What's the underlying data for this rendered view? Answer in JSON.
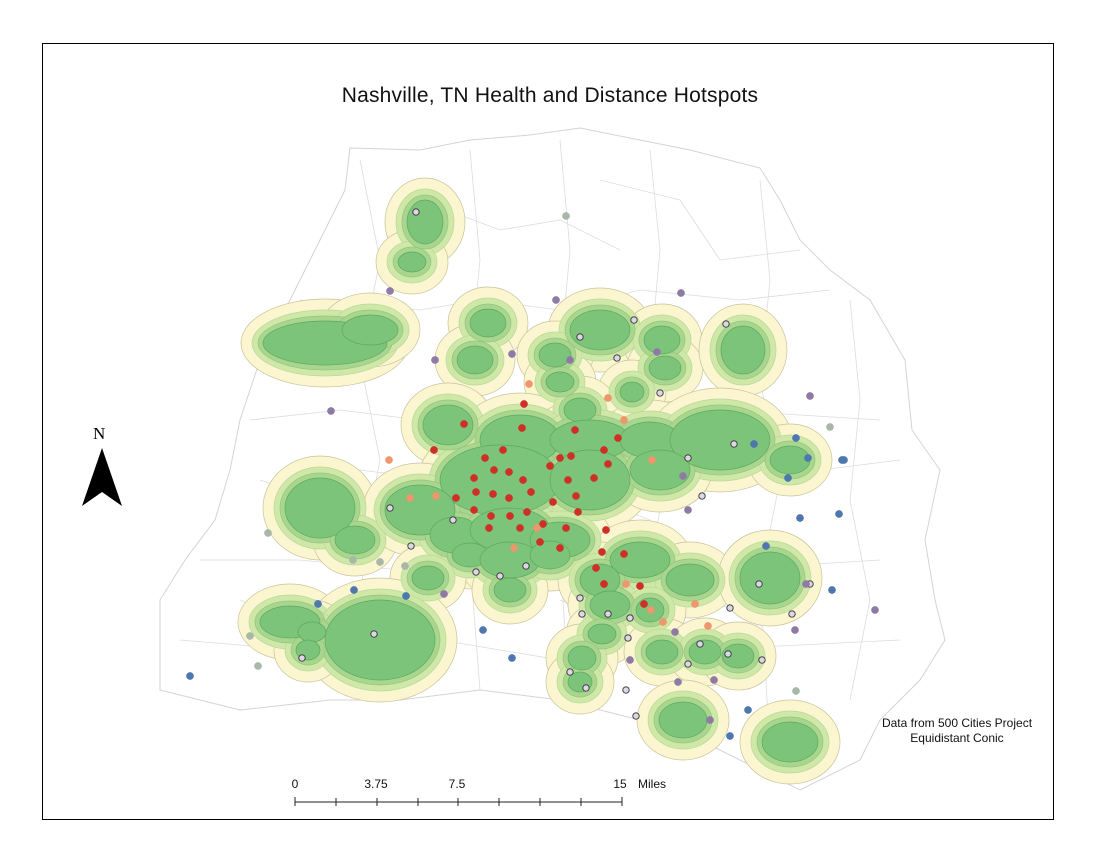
{
  "title": "Nashville, TN Health and Distance Hotspots",
  "north_arrow": {
    "label": "N"
  },
  "credits": {
    "source": "Data from 500 Cities Project",
    "projection": "Equidistant Conic"
  },
  "scale_bar": {
    "ticks": [
      "0",
      "3.75",
      "7.5",
      "15"
    ],
    "unit": "Miles"
  },
  "colors": {
    "buffer_outer": "#fbf6cf",
    "buffer_mid": "#cfe8a8",
    "buffer_inner": "#a9d68f",
    "hotspot_core": "#7bc47a",
    "tract_lines": "#d8d8d8",
    "point_red": "#cf2f26",
    "point_orange": "#f0956c",
    "point_purple": "#8f7aa6",
    "point_blue": "#4d77ae",
    "point_gray": "#a8b8a8"
  }
}
